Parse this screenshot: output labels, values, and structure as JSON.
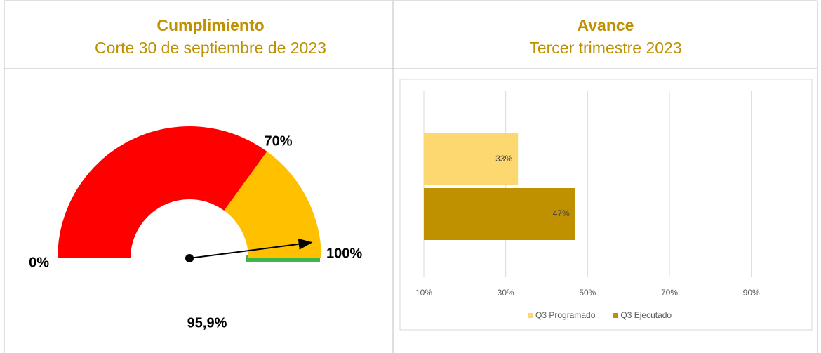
{
  "chart_data": [
    {
      "type": "gauge",
      "title": "Cumplimiento",
      "subtitle": "Corte 30 de septiembre de 2023",
      "value": 95.9,
      "value_label": "95,9%",
      "xlim": [
        0,
        100
      ],
      "xticks": [
        {
          "value": 0,
          "label": "0%"
        },
        {
          "value": 70,
          "label": "70%"
        },
        {
          "value": 100,
          "label": "100%"
        }
      ],
      "bands": [
        {
          "from": 0,
          "to": 70,
          "color": "#ff0000"
        },
        {
          "from": 70,
          "to": 100,
          "color": "#ffc000"
        }
      ]
    },
    {
      "type": "barh",
      "title": "Avance",
      "subtitle": "Tercer trimestre 2023",
      "series": [
        {
          "name": "Q3 Programado",
          "color": "#fdd870",
          "values": [
            33
          ],
          "value_labels": [
            "33%"
          ]
        },
        {
          "name": "Q3 Ejecutado",
          "color": "#bf9000",
          "values": [
            47
          ],
          "value_labels": [
            "47%"
          ]
        }
      ],
      "xlim": [
        10,
        100
      ],
      "xticks": [
        {
          "value": 10,
          "label": "10%"
        },
        {
          "value": 30,
          "label": "30%"
        },
        {
          "value": 50,
          "label": "50%"
        },
        {
          "value": 70,
          "label": "70%"
        },
        {
          "value": 90,
          "label": "90%"
        }
      ],
      "grid": true
    }
  ]
}
